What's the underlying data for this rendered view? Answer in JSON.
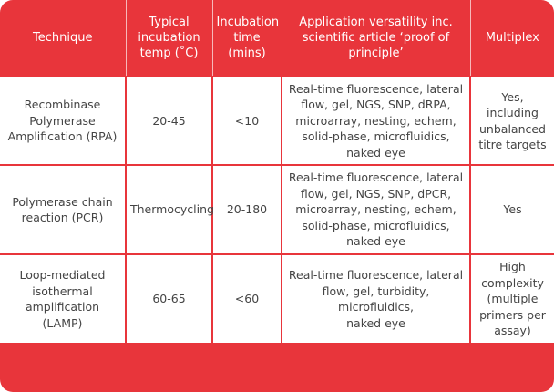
{
  "table": {
    "headers": [
      "Technique",
      "Typical\nincubation\ntemp (˚C)",
      "Incubation\ntime\n(mins)",
      "Application versatility inc.\nscientific article ‘proof of\nprinciple’",
      "Multiplex"
    ],
    "rows": [
      {
        "technique": "Recombinase\nPolymerase\nAmplification (RPA)",
        "temp": "20-45",
        "time": "<10",
        "versatility": "Real-time fluorescence, lateral\nflow, gel, NGS, SNP, dRPA,\nmicroarray, nesting, echem,\nsolid-phase, microfluidics,\nnaked eye",
        "multiplex": "Yes,\nincluding\nunbalanced\ntitre targets"
      },
      {
        "technique": "Polymerase chain\nreaction (PCR)",
        "temp": "Thermocycling",
        "time": "20-180",
        "versatility": "Real-time fluorescence, lateral\nflow, gel, NGS, SNP, dPCR,\nmicroarray, nesting, echem,\nsolid-phase, microfluidics,\nnaked eye",
        "multiplex": "Yes"
      },
      {
        "technique": "Loop-mediated\nisothermal\namplification\n(LAMP)",
        "temp": "60-65",
        "time": "<60",
        "versatility": "Real-time fluorescence, lateral\nflow, gel, turbidity, microfluidics,\nnaked eye",
        "multiplex": "High\ncomplexity\n(multiple\nprimers per\nassay)"
      }
    ]
  },
  "colors": {
    "accent": "#e8353b",
    "text": "#444444",
    "header_text": "#ffffff"
  }
}
